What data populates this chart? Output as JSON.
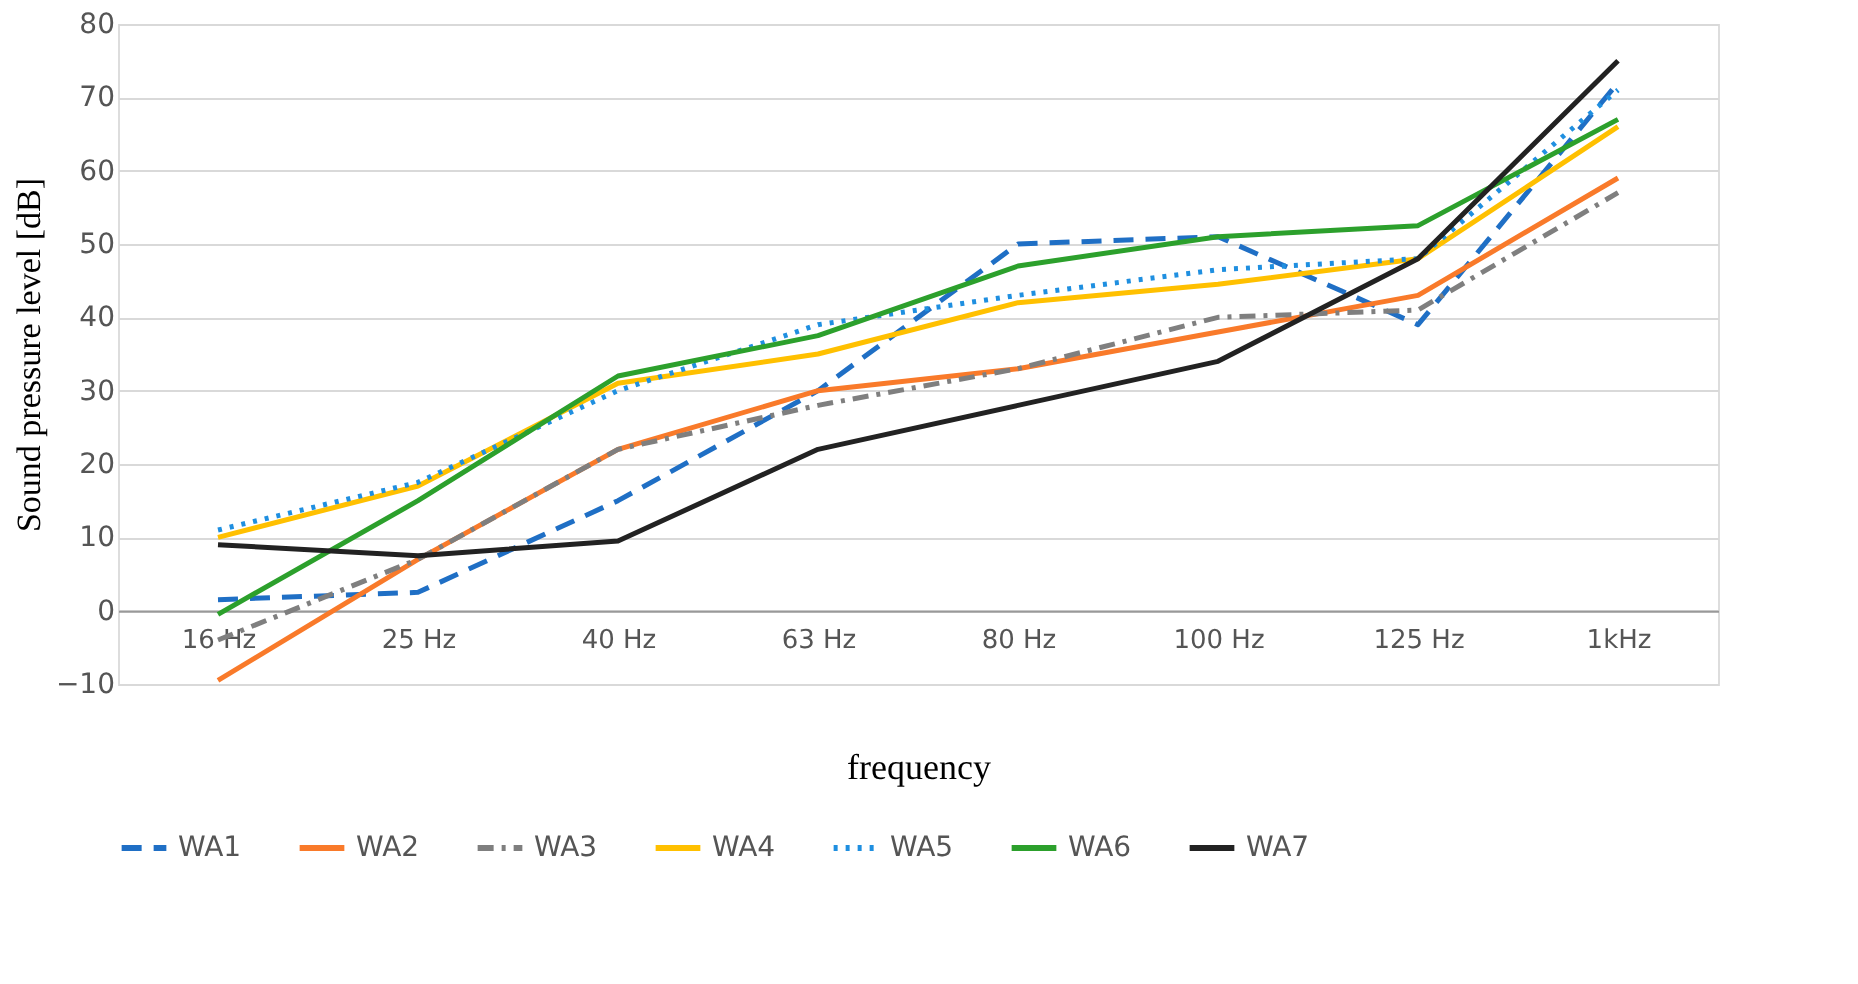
{
  "chart_data": {
    "type": "line",
    "xlabel": "frequency",
    "ylabel": "Sound pressure level [dB]",
    "categories": [
      "16 Hz",
      "25 Hz",
      "40 Hz",
      "63 Hz",
      "80 Hz",
      "100 Hz",
      "125 Hz",
      "1kHz"
    ],
    "ylim": [
      -10,
      80
    ],
    "yticks": [
      -10,
      0,
      10,
      20,
      30,
      40,
      50,
      60,
      70,
      80
    ],
    "grid": "y",
    "legend": "bottom",
    "marker": "none",
    "series": [
      {
        "name": "WA1",
        "color": "#1f6fc5",
        "line_style": "dashed",
        "values": [
          1.5,
          2.5,
          15,
          30,
          50,
          51,
          39,
          72
        ]
      },
      {
        "name": "WA2",
        "color": "#f97a2a",
        "line_style": "solid",
        "values": [
          -9.5,
          7,
          22,
          30,
          33,
          38,
          43,
          59
        ]
      },
      {
        "name": "WA3",
        "color": "#7f7f7f",
        "line_style": "dashdot",
        "values": [
          -4,
          7,
          22,
          28,
          33,
          40,
          41,
          57
        ]
      },
      {
        "name": "WA4",
        "color": "#ffc000",
        "line_style": "solid",
        "values": [
          10,
          17,
          31,
          35,
          42,
          44.5,
          48,
          66
        ]
      },
      {
        "name": "WA5",
        "color": "#1f8fe0",
        "line_style": "dotted",
        "values": [
          11,
          17.5,
          30,
          39,
          43,
          46.5,
          48,
          71
        ]
      },
      {
        "name": "WA6",
        "color": "#2ca02c",
        "line_style": "solid",
        "values": [
          -0.5,
          15,
          32,
          37.5,
          47,
          51,
          52.5,
          67
        ]
      },
      {
        "name": "WA7",
        "color": "#222222",
        "line_style": "solid",
        "values": [
          9,
          7.5,
          9.5,
          22,
          28,
          34,
          48,
          75
        ]
      }
    ]
  }
}
